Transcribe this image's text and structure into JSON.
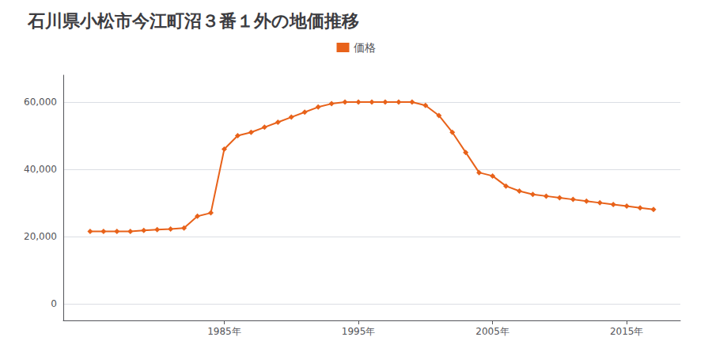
{
  "chart_data": {
    "type": "line",
    "title": "石川県小松市今江町沼３番１外の地価推移",
    "x": [
      1975,
      1976,
      1977,
      1978,
      1979,
      1980,
      1981,
      1982,
      1983,
      1984,
      1985,
      1986,
      1987,
      1988,
      1989,
      1990,
      1991,
      1992,
      1993,
      1994,
      1995,
      1996,
      1997,
      1998,
      1999,
      2000,
      2001,
      2002,
      2003,
      2004,
      2005,
      2006,
      2007,
      2008,
      2009,
      2010,
      2011,
      2012,
      2013,
      2014,
      2015,
      2016,
      2017
    ],
    "series": [
      {
        "name": "価格",
        "color": "#E8621A",
        "marker": "diamond",
        "values": [
          21500,
          21500,
          21500,
          21500,
          21800,
          22000,
          22200,
          22500,
          26000,
          27000,
          46000,
          50000,
          51000,
          52500,
          54000,
          55500,
          57000,
          58500,
          59500,
          60000,
          60000,
          60000,
          60000,
          60000,
          60000,
          59000,
          56000,
          51000,
          45000,
          39000,
          38000,
          35000,
          33500,
          32500,
          32000,
          31500,
          31000,
          30500,
          30000,
          29500,
          29000,
          28500,
          28000
        ]
      }
    ],
    "xlim": [
      1973,
      2019
    ],
    "xticks": [
      {
        "value": 1985,
        "label": "1985年"
      },
      {
        "value": 1995,
        "label": "1995年"
      },
      {
        "value": 2005,
        "label": "2005年"
      },
      {
        "value": 2015,
        "label": "2015年"
      }
    ],
    "ylim": [
      -5000,
      68000
    ],
    "yticks": [
      0,
      {
        "value": 20000,
        "label": "20,000"
      },
      {
        "value": 40000,
        "label": "40,000"
      },
      {
        "value": 60000,
        "label": "60,000"
      }
    ],
    "grid": true,
    "legend": "top"
  }
}
